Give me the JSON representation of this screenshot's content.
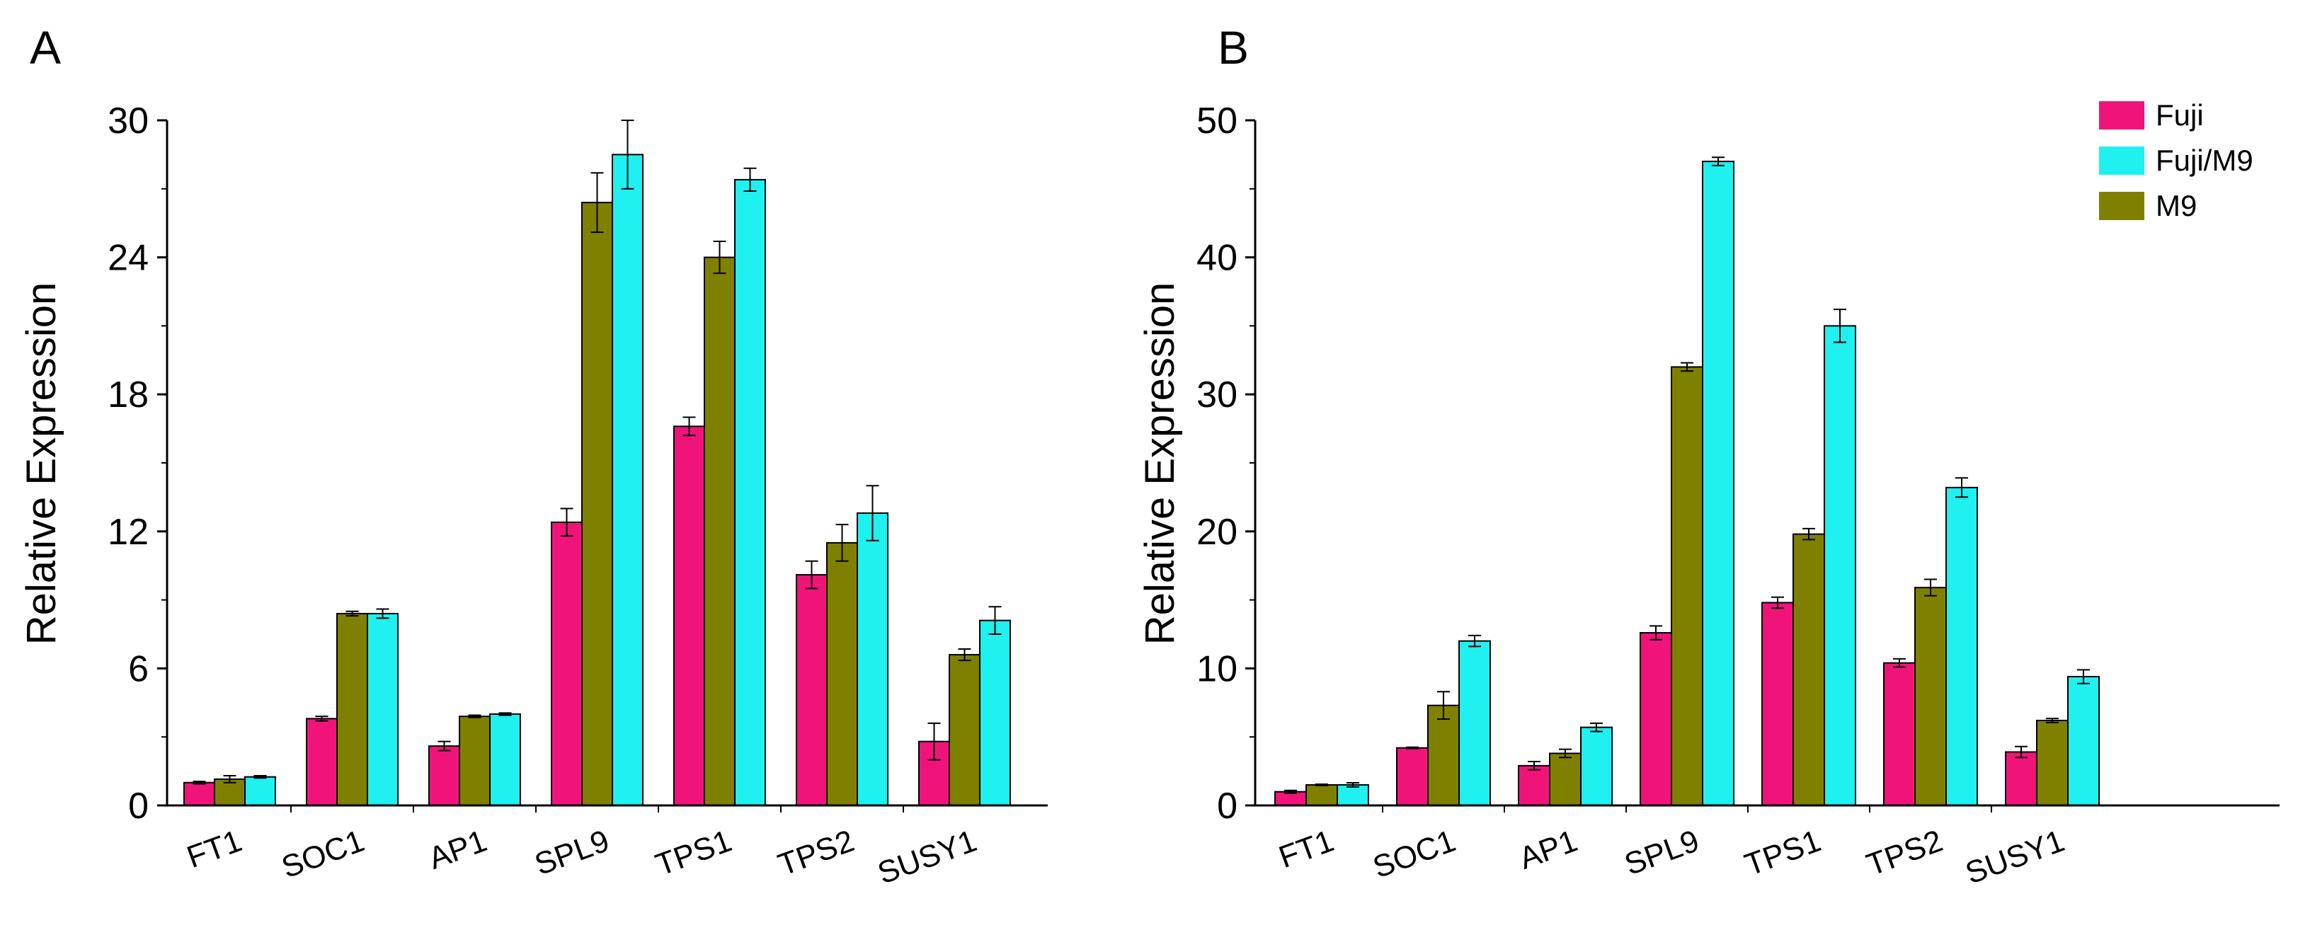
{
  "figure": {
    "panel_labels": [
      "A",
      "B"
    ],
    "legend": [
      "Fuji",
      "Fuji/M9",
      "M9"
    ],
    "colors": {
      "Fuji": "#f0147a",
      "Fuji/M9": "#1ff0f0",
      "M9": "#808000"
    }
  },
  "chart_data": [
    {
      "type": "bar",
      "panel": "A",
      "title": "",
      "xlabel": "",
      "ylabel": "Relative Expression",
      "ylim": [
        0,
        30
      ],
      "yticks": [
        0,
        6,
        12,
        18,
        24,
        30
      ],
      "categories": [
        "FT1",
        "SOC1",
        "AP1",
        "SPL9",
        "TPS1",
        "TPS2",
        "SUSY1"
      ],
      "series": [
        {
          "name": "Fuji",
          "values": [
            1.0,
            3.8,
            2.6,
            12.4,
            16.6,
            10.1,
            2.8
          ],
          "errors": [
            0.05,
            0.1,
            0.2,
            0.6,
            0.4,
            0.6,
            0.8
          ]
        },
        {
          "name": "M9",
          "values": [
            1.15,
            8.4,
            3.9,
            26.4,
            24.0,
            11.5,
            6.6
          ],
          "errors": [
            0.15,
            0.1,
            0.05,
            1.3,
            0.7,
            0.8,
            0.25
          ]
        },
        {
          "name": "Fuji/M9",
          "values": [
            1.25,
            8.4,
            4.0,
            28.5,
            27.4,
            12.8,
            8.1
          ],
          "errors": [
            0.05,
            0.2,
            0.05,
            1.5,
            0.5,
            1.2,
            0.6
          ]
        }
      ]
    },
    {
      "type": "bar",
      "panel": "B",
      "title": "",
      "xlabel": "",
      "ylabel": "Relative Expression",
      "ylim": [
        0,
        50
      ],
      "yticks": [
        0,
        10,
        20,
        30,
        40,
        50
      ],
      "categories": [
        "FT1",
        "SOC1",
        "AP1",
        "SPL9",
        "TPS1",
        "TPS2",
        "SUSY1"
      ],
      "series": [
        {
          "name": "Fuji",
          "values": [
            1.0,
            4.2,
            2.9,
            12.6,
            14.8,
            10.4,
            3.9
          ],
          "errors": [
            0.1,
            0.05,
            0.3,
            0.5,
            0.4,
            0.3,
            0.4
          ]
        },
        {
          "name": "M9",
          "values": [
            1.5,
            7.3,
            3.8,
            32.0,
            19.8,
            15.9,
            6.2
          ],
          "errors": [
            0.05,
            1.0,
            0.3,
            0.3,
            0.4,
            0.6,
            0.15
          ]
        },
        {
          "name": "Fuji/M9",
          "values": [
            1.5,
            12.0,
            5.7,
            47.0,
            35.0,
            23.2,
            9.4
          ],
          "errors": [
            0.15,
            0.4,
            0.3,
            0.3,
            1.2,
            0.7,
            0.5
          ]
        }
      ]
    }
  ]
}
